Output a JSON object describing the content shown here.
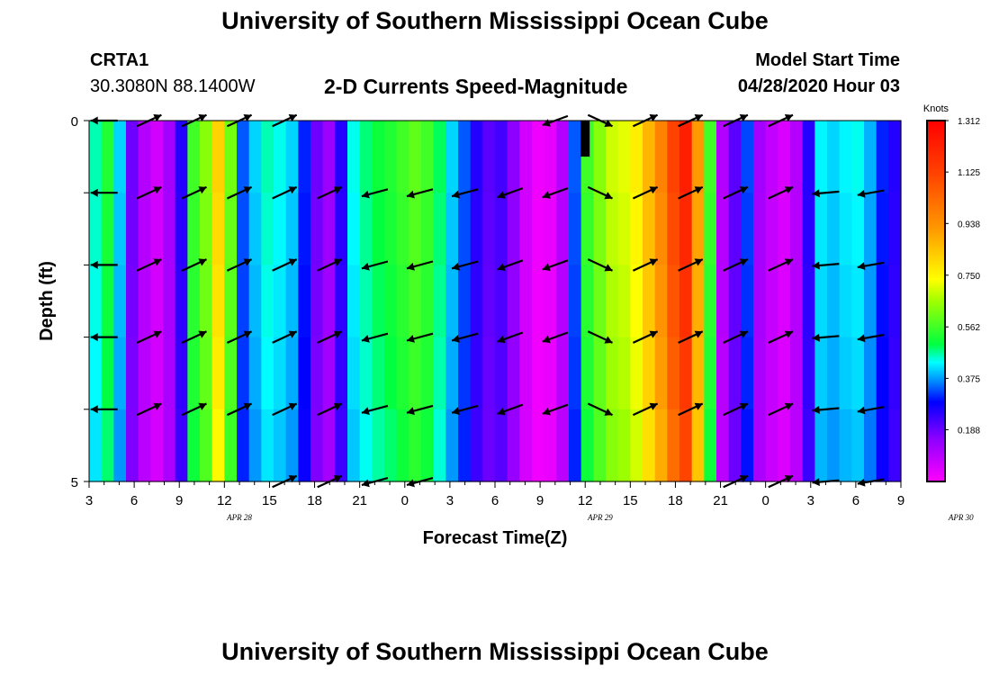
{
  "header": {
    "title": "University of Southern Mississippi Ocean Cube",
    "station_id": "CRTA1",
    "station_coords": "30.3080N 88.1400W",
    "chart_title": "2-D Currents Speed-Magnitude",
    "model_start_label": "Model Start Time",
    "model_start_value": "04/28/2020 Hour 03"
  },
  "footer": {
    "title": "University of Southern Mississippi Ocean Cube"
  },
  "chart_data": {
    "type": "heatmap",
    "title": "2-D Currents Speed-Magnitude",
    "xlabel": "Forecast Time(Z)",
    "ylabel": "Depth (ft)",
    "colorbar_label": "Knots",
    "colorbar_ticks": [
      "1.312",
      "1.125",
      "0.938",
      "0.750",
      "0.562",
      "0.375",
      "0.188"
    ],
    "colorbar_range": [
      0.0,
      1.312
    ],
    "ylim": [
      0,
      5
    ],
    "y_tick_labels": [
      "0",
      "5"
    ],
    "x_tick_labels": [
      "3",
      "6",
      "9",
      "12",
      "15",
      "18",
      "21",
      "0",
      "3",
      "6",
      "9",
      "12",
      "15",
      "18",
      "21",
      "0",
      "3",
      "6",
      "9"
    ],
    "date_labels": [
      {
        "text": "APR  28",
        "x_hour": 13
      },
      {
        "text": "APR  29",
        "x_hour": 37
      },
      {
        "text": "APR  30",
        "x_hour": 61
      }
    ],
    "x_start_hour": 3,
    "x_end_hour": 57,
    "x_unit": "hours since 04/28/2020 00Z",
    "speed_knots": [
      0.45,
      0.52,
      0.4,
      0.18,
      0.1,
      0.06,
      0.12,
      0.25,
      0.55,
      0.62,
      0.8,
      0.6,
      0.33,
      0.4,
      0.45,
      0.43,
      0.4,
      0.3,
      0.18,
      0.13,
      0.25,
      0.43,
      0.47,
      0.5,
      0.52,
      0.55,
      0.58,
      0.55,
      0.48,
      0.4,
      0.33,
      0.25,
      0.2,
      0.22,
      0.15,
      0.06,
      0.02,
      0.03,
      0.1,
      0.33,
      0.55,
      0.62,
      0.68,
      0.7,
      0.75,
      0.85,
      0.95,
      1.1,
      1.2,
      0.9,
      0.55,
      0.1,
      0.2,
      0.32,
      0.12,
      0.08,
      0.05,
      0.1,
      0.25,
      0.42,
      0.4,
      0.42,
      0.43,
      0.38,
      0.3,
      0.25
    ],
    "arrow_depth_rows": [
      0,
      1,
      2,
      3,
      4,
      5
    ],
    "arrow_hours": [
      4,
      7,
      10,
      13,
      16,
      19,
      22,
      25,
      28,
      31,
      34,
      37,
      40,
      43,
      46,
      49,
      52,
      55
    ],
    "arrow_angles_deg": [
      180,
      25,
      25,
      25,
      25,
      25,
      -165,
      -165,
      -165,
      -160,
      -160,
      -25,
      25,
      25,
      25,
      25,
      -175,
      -170
    ],
    "arrow_presence": [
      [
        1,
        1,
        1,
        1,
        1,
        0,
        0,
        0,
        0,
        0,
        1,
        1,
        1,
        1,
        1,
        1,
        0,
        0
      ],
      [
        1,
        1,
        1,
        1,
        1,
        1,
        1,
        1,
        1,
        1,
        1,
        1,
        1,
        1,
        1,
        1,
        1,
        1
      ],
      [
        1,
        1,
        1,
        1,
        1,
        1,
        1,
        1,
        1,
        1,
        1,
        1,
        1,
        1,
        1,
        1,
        1,
        1
      ],
      [
        1,
        1,
        1,
        1,
        1,
        1,
        1,
        1,
        1,
        1,
        1,
        1,
        1,
        1,
        1,
        1,
        1,
        1
      ],
      [
        1,
        1,
        1,
        1,
        1,
        1,
        1,
        1,
        1,
        1,
        1,
        1,
        1,
        1,
        1,
        1,
        1,
        1
      ],
      [
        0,
        0,
        0,
        0,
        1,
        1,
        1,
        1,
        0,
        0,
        0,
        0,
        0,
        0,
        1,
        1,
        1,
        1
      ]
    ],
    "missing_marker_hour": 36
  },
  "colors": {
    "arrow": "#000000",
    "background": "#ffffff"
  }
}
